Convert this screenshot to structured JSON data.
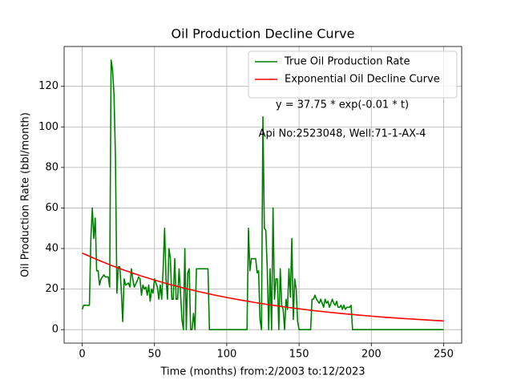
{
  "chart_data": {
    "type": "line",
    "title": "Oil Production Decline Curve",
    "xlabel": "Time (months) from:2/2003 to:12/2023",
    "ylabel": "Oil Production Rate (bbl/month)",
    "annotations": [
      "y = 37.75 * exp(-0.01 * t)",
      "Api No:2523048, Well:71-1-AX-4"
    ],
    "xlim": [
      -12.5,
      262.5
    ],
    "ylim": [
      -6.65,
      139.65
    ],
    "xticks": [
      0,
      50,
      100,
      150,
      200,
      250
    ],
    "yticks": [
      0,
      20,
      40,
      60,
      80,
      100,
      120
    ],
    "grid": true,
    "legend": "upper right",
    "series": [
      {
        "name": "True Oil Production Rate",
        "color": "#008000",
        "x": [
          0,
          1,
          5,
          6,
          7,
          8,
          9,
          10,
          11,
          12,
          13,
          14,
          15,
          16,
          18,
          19,
          20,
          21,
          22,
          23,
          24,
          25,
          26,
          27,
          28,
          29,
          30,
          32,
          33,
          34,
          35,
          36,
          38,
          39,
          40,
          41,
          42,
          43,
          44,
          45,
          46,
          47,
          48,
          49,
          50,
          52,
          53,
          54,
          55,
          56,
          57,
          58,
          59,
          60,
          61,
          62,
          63,
          64,
          65,
          66,
          67,
          68,
          69,
          70,
          71,
          72,
          73,
          74,
          75,
          76,
          77,
          78,
          79,
          87,
          88,
          110,
          114,
          115,
          116,
          117,
          119,
          120,
          121,
          122,
          123,
          124,
          125,
          126,
          127,
          128,
          129,
          130,
          131,
          132,
          133,
          134,
          135,
          136,
          137,
          138,
          139,
          140,
          141,
          142,
          143,
          144,
          145,
          146,
          147,
          148,
          149,
          150,
          158,
          159,
          160,
          161,
          162,
          164,
          165,
          166,
          167,
          168,
          169,
          170,
          171,
          172,
          173,
          174,
          175,
          176,
          177,
          178,
          179,
          180,
          181,
          182,
          183,
          184,
          185,
          186,
          187,
          250
        ],
        "values": [
          10,
          12,
          12,
          45,
          60,
          45,
          55,
          29,
          29,
          22,
          25,
          26,
          27,
          26,
          26,
          21,
          133,
          128,
          116,
          85,
          18,
          31,
          31,
          20,
          4,
          25,
          22,
          23,
          21,
          30,
          25,
          21,
          24,
          26,
          25,
          17,
          22,
          20,
          21,
          17,
          22,
          14,
          20,
          18,
          25,
          21,
          15,
          22,
          15,
          30,
          50,
          25,
          15,
          40,
          35,
          15,
          15,
          35,
          15,
          15,
          30,
          18,
          5,
          0,
          40,
          0,
          28,
          30,
          0,
          0,
          8,
          0,
          30,
          30,
          0,
          0,
          0,
          50,
          29,
          35,
          35,
          35,
          28,
          29,
          5,
          0,
          105,
          50,
          49,
          30,
          0,
          30,
          0,
          60,
          15,
          25,
          25,
          0,
          30,
          12,
          10,
          0,
          15,
          10,
          30,
          16,
          45,
          5,
          25,
          20,
          4,
          0,
          0,
          15,
          15,
          17,
          15,
          13,
          15,
          13,
          11,
          15,
          13,
          14,
          11,
          13,
          15,
          13,
          12,
          14,
          11,
          11,
          12,
          10,
          12,
          10,
          11,
          11,
          11,
          12,
          0,
          0
        ]
      },
      {
        "name": "Exponential Oil Decline Curve",
        "color": "#ff0000",
        "x": [
          0,
          10,
          20,
          30,
          40,
          50,
          60,
          70,
          80,
          90,
          100,
          110,
          120,
          130,
          140,
          150,
          160,
          170,
          180,
          190,
          200,
          210,
          220,
          230,
          240,
          250
        ],
        "values": [
          37.75,
          34.61,
          31.73,
          29.09,
          26.67,
          24.45,
          22.42,
          20.55,
          18.84,
          17.27,
          15.84,
          14.52,
          13.31,
          12.2,
          11.19,
          10.26,
          9.4,
          8.62,
          7.9,
          7.25,
          6.64,
          6.09,
          5.58,
          5.12,
          4.69,
          4.3
        ]
      }
    ]
  }
}
